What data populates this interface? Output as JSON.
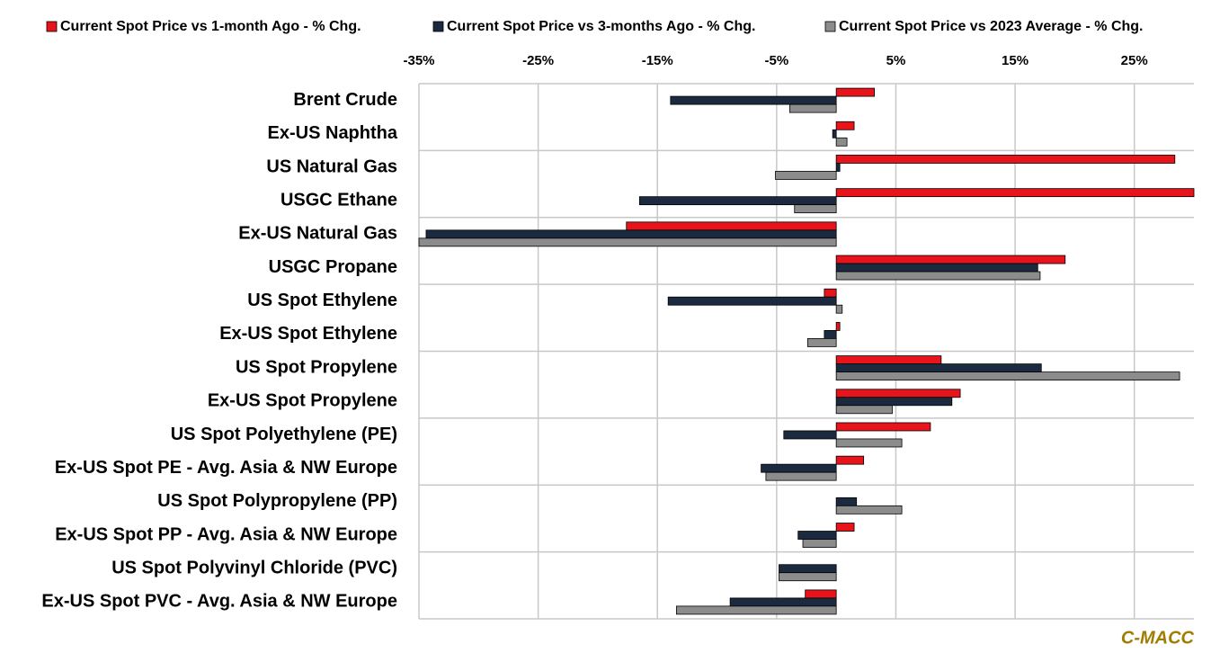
{
  "chart_data": {
    "type": "barh",
    "source": "C-MACC",
    "categories": [
      "Brent Crude",
      "Ex-US Naphtha",
      "US Natural Gas",
      "USGC Ethane",
      "Ex-US Natural Gas",
      "USGC Propane",
      "US Spot Ethylene",
      "Ex-US Spot Ethylene",
      "US Spot Propylene",
      "Ex-US Spot Propylene",
      "US Spot Polyethylene (PE)",
      "Ex-US Spot PE - Avg. Asia & NW Europe",
      "US Spot Polypropylene (PP)",
      "Ex-US Spot PP - Avg. Asia & NW Europe",
      "US Spot Polyvinyl Chloride (PVC)",
      "Ex-US Spot PVC - Avg. Asia & NW Europe"
    ],
    "series": [
      {
        "name": "Current Spot Price vs 1-month Ago - % Chg.",
        "color": "#e8141c",
        "values": [
          3.2,
          1.5,
          28.4,
          30,
          -17.6,
          19.2,
          -1.0,
          0.3,
          8.8,
          10.4,
          7.9,
          2.3,
          null,
          1.5,
          null,
          -2.6
        ]
      },
      {
        "name": "Current Spot Price vs 3-months Ago - % Chg.",
        "color": "#1b2a3e",
        "values": [
          -13.9,
          -0.3,
          0.3,
          -16.5,
          -34.4,
          16.9,
          -14.1,
          -1.0,
          17.2,
          9.7,
          -4.4,
          -6.3,
          1.7,
          -3.2,
          -4.8,
          -8.9
        ]
      },
      {
        "name": "Current Spot Price vs 2023 Average - % Chg.",
        "color": "#8c8c8c",
        "values": [
          -3.9,
          0.9,
          -5.1,
          -3.5,
          -35,
          17.1,
          0.5,
          -2.4,
          28.8,
          4.7,
          5.5,
          -5.9,
          5.5,
          -2.8,
          -4.8,
          -13.4
        ]
      }
    ],
    "xlim": [
      -35,
      30
    ],
    "xticks": [
      {
        "value": -35,
        "label": "-35%"
      },
      {
        "value": -25,
        "label": "-25%"
      },
      {
        "value": -15,
        "label": "-15%"
      },
      {
        "value": -5,
        "label": "-5%"
      },
      {
        "value": 5,
        "label": "5%"
      },
      {
        "value": 15,
        "label": "15%"
      },
      {
        "value": 25,
        "label": "25%"
      }
    ],
    "grid": true,
    "legend": "top"
  }
}
